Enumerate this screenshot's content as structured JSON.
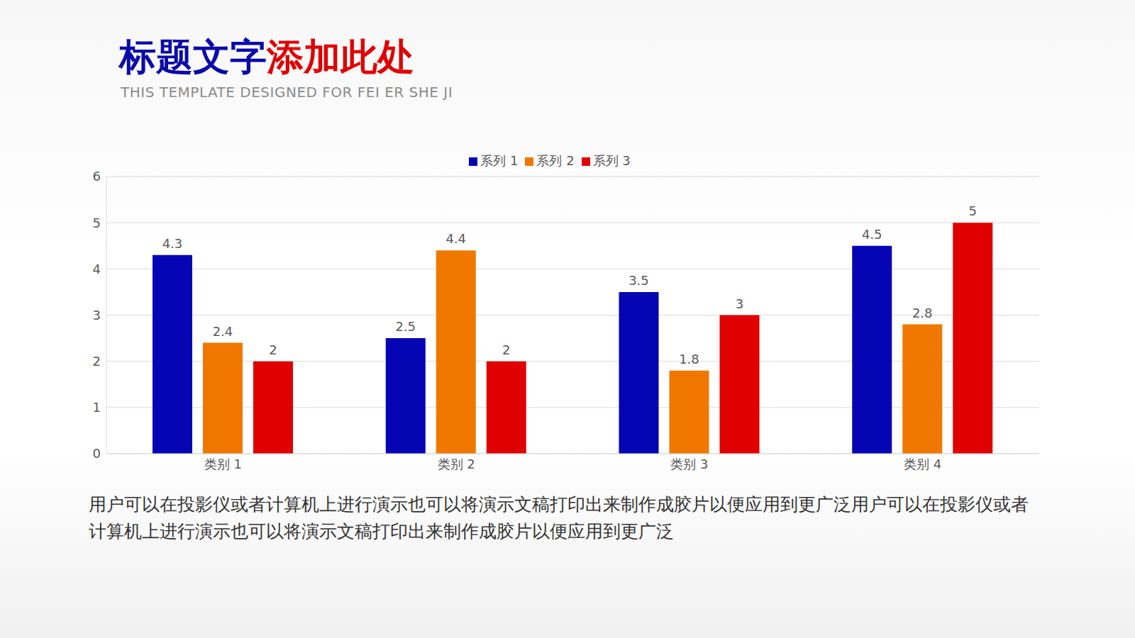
{
  "header": {
    "title": "标题文字添加此处",
    "subtitle": "THIS TEMPLATE DESIGNED FOR FEI ER SHE JI"
  },
  "chart_data": {
    "type": "bar",
    "categories": [
      "类别 1",
      "类别 2",
      "类别 3",
      "类别 4"
    ],
    "series": [
      {
        "name": "系列 1",
        "color": "#0505b4",
        "values": [
          4.3,
          2.5,
          3.5,
          4.5
        ]
      },
      {
        "name": "系列 2",
        "color": "#f07800",
        "values": [
          2.4,
          4.4,
          1.8,
          2.8
        ]
      },
      {
        "name": "系列 3",
        "color": "#e00000",
        "values": [
          2,
          2,
          3,
          5
        ]
      }
    ],
    "ylim": [
      0,
      6
    ],
    "yticks": [
      0,
      1,
      2,
      3,
      4,
      5,
      6
    ],
    "grid": true,
    "legend": "top",
    "data_labels": true
  },
  "body": "用户可以在投影仪或者计算机上进行演示也可以将演示文稿打印出来制作成胶片以便应用到更广泛用户可以在投影仪或者计算机上进行演示也可以将演示文稿打印出来制作成胶片以便应用到更广泛"
}
